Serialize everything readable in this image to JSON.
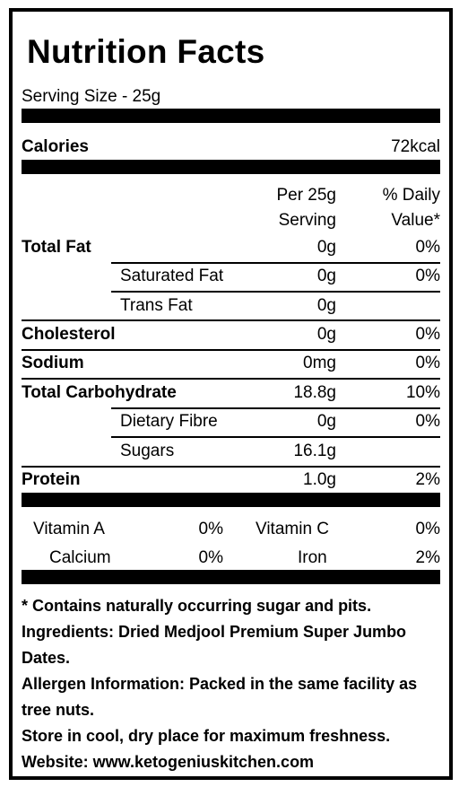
{
  "label": {
    "title": "Nutrition Facts",
    "serving_size": "Serving Size - 25g",
    "calories": {
      "label": "Calories",
      "value": "72kcal"
    },
    "header": {
      "per_line1": "Per 25g",
      "per_line2": "Serving",
      "dv_line1": "% Daily",
      "dv_line2": "Value*"
    },
    "rows": [
      {
        "name": "Total Fat",
        "amount": "0g",
        "dv": "0%"
      },
      {
        "name": "Saturated Fat",
        "amount": "0g",
        "dv": "0%"
      },
      {
        "name": "Trans Fat",
        "amount": "0g",
        "dv": ""
      },
      {
        "name": "Cholesterol",
        "amount": "0g",
        "dv": "0%"
      },
      {
        "name": "Sodium",
        "amount": "0mg",
        "dv": "0%"
      },
      {
        "name": "Total Carbohydrate",
        "amount": "18.8g",
        "dv": "10%"
      },
      {
        "name": "Dietary Fibre",
        "amount": "0g",
        "dv": "0%"
      },
      {
        "name": "Sugars",
        "amount": "16.1g",
        "dv": ""
      },
      {
        "name": "Protein",
        "amount": "1.0g",
        "dv": "2%"
      }
    ],
    "vitamins": [
      {
        "name": "Vitamin A",
        "value": "0%"
      },
      {
        "name": "Vitamin C",
        "value": "0%"
      },
      {
        "name": "Calcium",
        "value": "0%"
      },
      {
        "name": "Iron",
        "value": "2%"
      }
    ],
    "footnotes": {
      "note": "* Contains naturally occurring sugar and pits.",
      "ingredients": "Ingredients: Dried Medjool Premium Super Jumbo Dates.",
      "allergen": "Allergen Information: Packed in the same facility as tree nuts.",
      "storage": "Store in cool, dry place for maximum freshness.",
      "website": "Website: www.ketogeniuskitchen.com"
    }
  }
}
